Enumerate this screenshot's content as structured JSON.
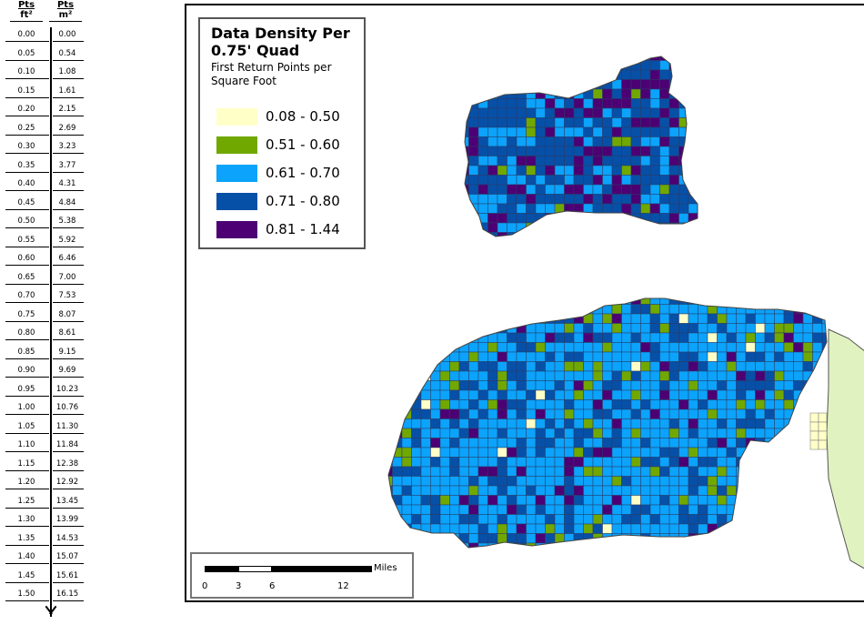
{
  "ruler": {
    "header_ft_top": "Pts",
    "header_ft_bottom": "ft²",
    "header_m_top": "Pts",
    "header_m_bottom": "m²",
    "rows": [
      {
        "ft": "0.00",
        "m": "0.00"
      },
      {
        "ft": "0.05",
        "m": "0.54"
      },
      {
        "ft": "0.10",
        "m": "1.08"
      },
      {
        "ft": "0.15",
        "m": "1.61"
      },
      {
        "ft": "0.20",
        "m": "2.15"
      },
      {
        "ft": "0.25",
        "m": "2.69"
      },
      {
        "ft": "0.30",
        "m": "3.23"
      },
      {
        "ft": "0.35",
        "m": "3.77"
      },
      {
        "ft": "0.40",
        "m": "4.31"
      },
      {
        "ft": "0.45",
        "m": "4.84"
      },
      {
        "ft": "0.50",
        "m": "5.38"
      },
      {
        "ft": "0.55",
        "m": "5.92"
      },
      {
        "ft": "0.60",
        "m": "6.46"
      },
      {
        "ft": "0.65",
        "m": "7.00"
      },
      {
        "ft": "0.70",
        "m": "7.53"
      },
      {
        "ft": "0.75",
        "m": "8.07"
      },
      {
        "ft": "0.80",
        "m": "8.61"
      },
      {
        "ft": "0.85",
        "m": "9.15"
      },
      {
        "ft": "0.90",
        "m": "9.69"
      },
      {
        "ft": "0.95",
        "m": "10.23"
      },
      {
        "ft": "1.00",
        "m": "10.76"
      },
      {
        "ft": "1.05",
        "m": "11.30"
      },
      {
        "ft": "1.10",
        "m": "11.84"
      },
      {
        "ft": "1.15",
        "m": "12.38"
      },
      {
        "ft": "1.20",
        "m": "12.92"
      },
      {
        "ft": "1.25",
        "m": "13.45"
      },
      {
        "ft": "1.30",
        "m": "13.99"
      },
      {
        "ft": "1.35",
        "m": "14.53"
      },
      {
        "ft": "1.40",
        "m": "15.07"
      },
      {
        "ft": "1.45",
        "m": "15.61"
      },
      {
        "ft": "1.50",
        "m": "16.15"
      }
    ]
  },
  "legend": {
    "title": "Data Density Per 0.75' Quad",
    "subtitle": "First Return Points per Square Foot",
    "classes": [
      {
        "label": "0.08 - 0.50",
        "color": "#ffffc8"
      },
      {
        "label": "0.51 - 0.60",
        "color": "#70a800"
      },
      {
        "label": "0.61 - 0.70",
        "color": "#0ba3fb"
      },
      {
        "label": "0.71 - 0.80",
        "color": "#0650a8"
      },
      {
        "label": "0.81 - 1.44",
        "color": "#4c0073"
      }
    ]
  },
  "scalebar": {
    "unit": "Miles",
    "ticks": [
      "0",
      "3",
      "6",
      "12"
    ]
  },
  "map": {
    "fill_color": "#19b6ee",
    "cell_border": "#2a3a66",
    "side_region_color": "#e0f2c0"
  }
}
